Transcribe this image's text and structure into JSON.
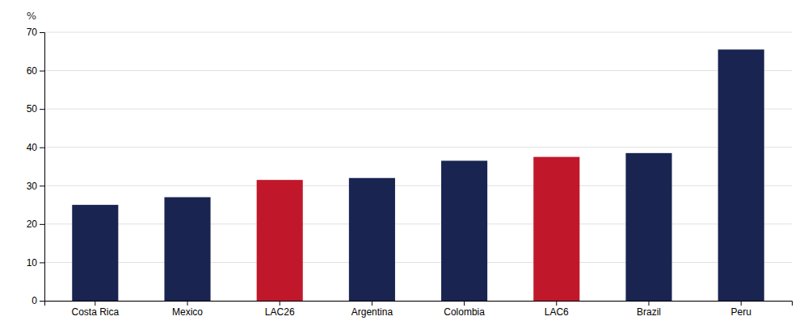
{
  "chart_data": {
    "type": "bar",
    "categories": [
      "Costa Rica",
      "Mexico",
      "LAC26",
      "Argentina",
      "Colombia",
      "LAC6",
      "Brazil",
      "Peru"
    ],
    "values": [
      25.0,
      27.0,
      31.5,
      32.0,
      36.5,
      37.5,
      38.5,
      65.5
    ],
    "colors": [
      "#1a2451",
      "#1a2451",
      "#c0182a",
      "#1a2451",
      "#1a2451",
      "#c0182a",
      "#1a2451",
      "#1a2451"
    ],
    "ylabel": "%",
    "ylim": [
      0,
      70
    ],
    "yticks": [
      0,
      10,
      20,
      30,
      40,
      50,
      60,
      70
    ],
    "grid": true
  }
}
